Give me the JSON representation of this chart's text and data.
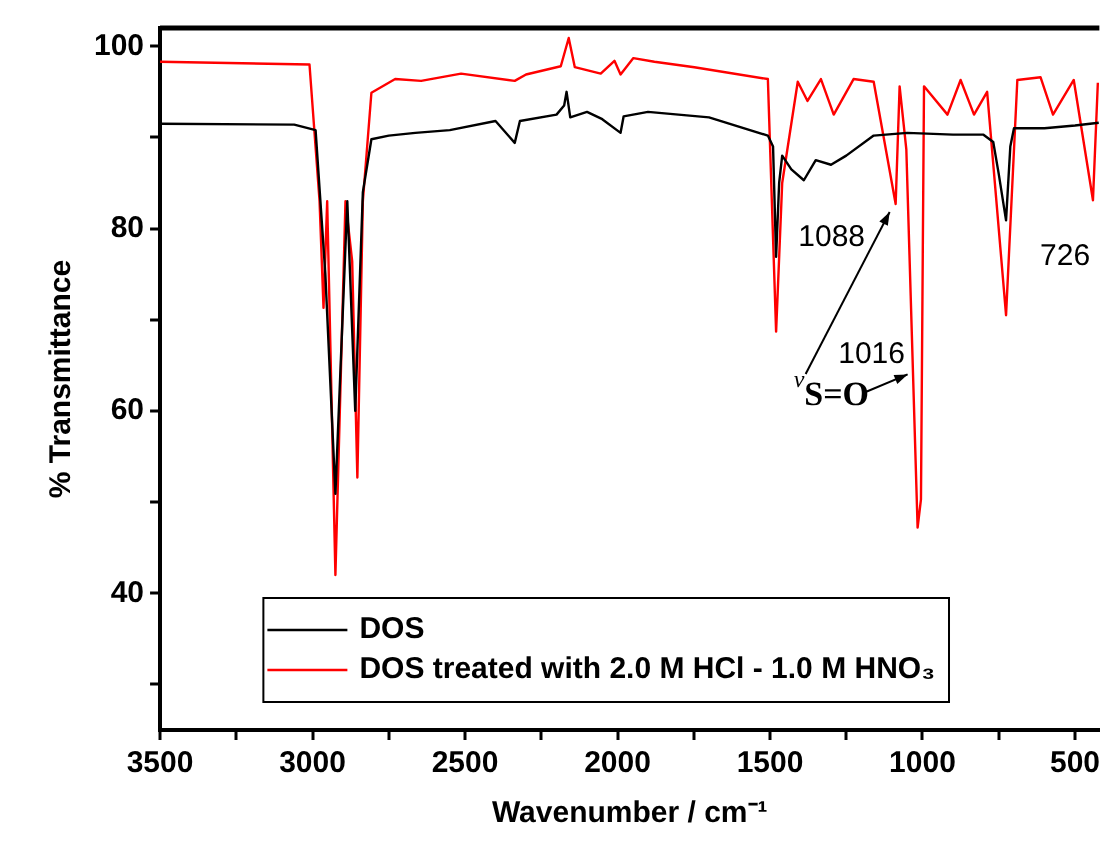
{
  "chart_data": {
    "type": "line",
    "xlabel": "Wavenumber / cm⁻¹",
    "ylabel": "% Transmittance",
    "xlim": [
      3500,
      420
    ],
    "ylim": [
      25,
      102
    ],
    "xticks": [
      3500,
      {
        "value": 3250,
        "label": null
      },
      3000,
      {
        "value": 2750,
        "label": null
      },
      2500,
      {
        "value": 2250,
        "label": null
      },
      2000,
      {
        "value": 1750,
        "label": null
      },
      1500,
      {
        "value": 1250,
        "label": null
      },
      1000,
      {
        "value": 750,
        "label": null
      },
      500
    ],
    "yticks": [
      {
        "value": 30,
        "label": null
      },
      40,
      {
        "value": 50,
        "label": null
      },
      60,
      {
        "value": 70,
        "label": null
      },
      80,
      {
        "value": 90,
        "label": null
      },
      100
    ],
    "grid": false,
    "legend": "bottom",
    "marker": "none",
    "line_style": "solid",
    "series": [
      {
        "name": "DOS",
        "color": "#000000",
        "x": [
          3500,
          3060,
          2990,
          2958,
          2925,
          2886,
          2860,
          2835,
          2807,
          2750,
          2663,
          2550,
          2400,
          2337,
          2320,
          2200,
          2175,
          2167,
          2155,
          2100,
          2050,
          1990,
          1980,
          1900,
          1700,
          1507,
          1490,
          1480,
          1470,
          1460,
          1430,
          1389,
          1350,
          1300,
          1250,
          1160,
          1050,
          900,
          800,
          768,
          750,
          726,
          712,
          700,
          600,
          500,
          422
        ],
        "values": [
          91.5,
          91.4,
          90.8,
          75,
          50.9,
          83,
          60,
          84,
          89.8,
          90.2,
          90.5,
          90.8,
          91.8,
          89.4,
          91.8,
          92.5,
          93.5,
          95,
          92.2,
          92.8,
          92,
          90.5,
          92.3,
          92.8,
          92.2,
          90.2,
          89,
          76.9,
          85,
          88,
          86.5,
          85.3,
          87.5,
          87,
          88,
          90.2,
          90.5,
          90.3,
          90.3,
          89.5,
          86,
          80.9,
          89,
          91,
          91,
          91.3,
          91.6
        ]
      },
      {
        "name": "DOS treated with 2.0 M HCl - 1.0 M HNO₃",
        "color": "#ff0000",
        "x": [
          3500,
          3010,
          2977,
          2964,
          2952,
          2925,
          2892,
          2870,
          2853,
          2835,
          2807,
          2729,
          2644,
          2513,
          2337,
          2300,
          2186,
          2160,
          2140,
          2055,
          2010,
          1990,
          1948,
          1879,
          1748,
          1507,
          1480,
          1460,
          1409,
          1377,
          1333,
          1291,
          1226,
          1160,
          1088,
          1075,
          1053,
          1016,
          1005,
          995,
          918,
          875,
          831,
          788,
          726,
          689,
          613,
          572,
          504,
          441,
          425
        ],
        "values": [
          98.3,
          98,
          83,
          71.3,
          83,
          42,
          83,
          76.4,
          52.7,
          83,
          94.9,
          96.4,
          96.2,
          97,
          96.2,
          96.9,
          97.8,
          100.9,
          97.7,
          97,
          98.4,
          96.9,
          98.7,
          98.3,
          97.7,
          96.4,
          68.7,
          85,
          96.1,
          94,
          96.4,
          92.5,
          96.4,
          96.1,
          82.7,
          95.6,
          88.7,
          47.2,
          50.3,
          95.6,
          92.5,
          96.3,
          92.5,
          95,
          70.5,
          96.3,
          96.6,
          92.5,
          96.3,
          83.1,
          96
        ]
      }
    ],
    "annotations": [
      {
        "text": "1088",
        "x": 1088,
        "y": 82.7
      },
      {
        "text": "1016",
        "x": 1016,
        "y": 64
      },
      {
        "text": "726",
        "x": 726,
        "y": 80.9
      },
      {
        "text": "$^{ν}$S=O",
        "x": 1088,
        "y": 82.7
      }
    ]
  }
}
